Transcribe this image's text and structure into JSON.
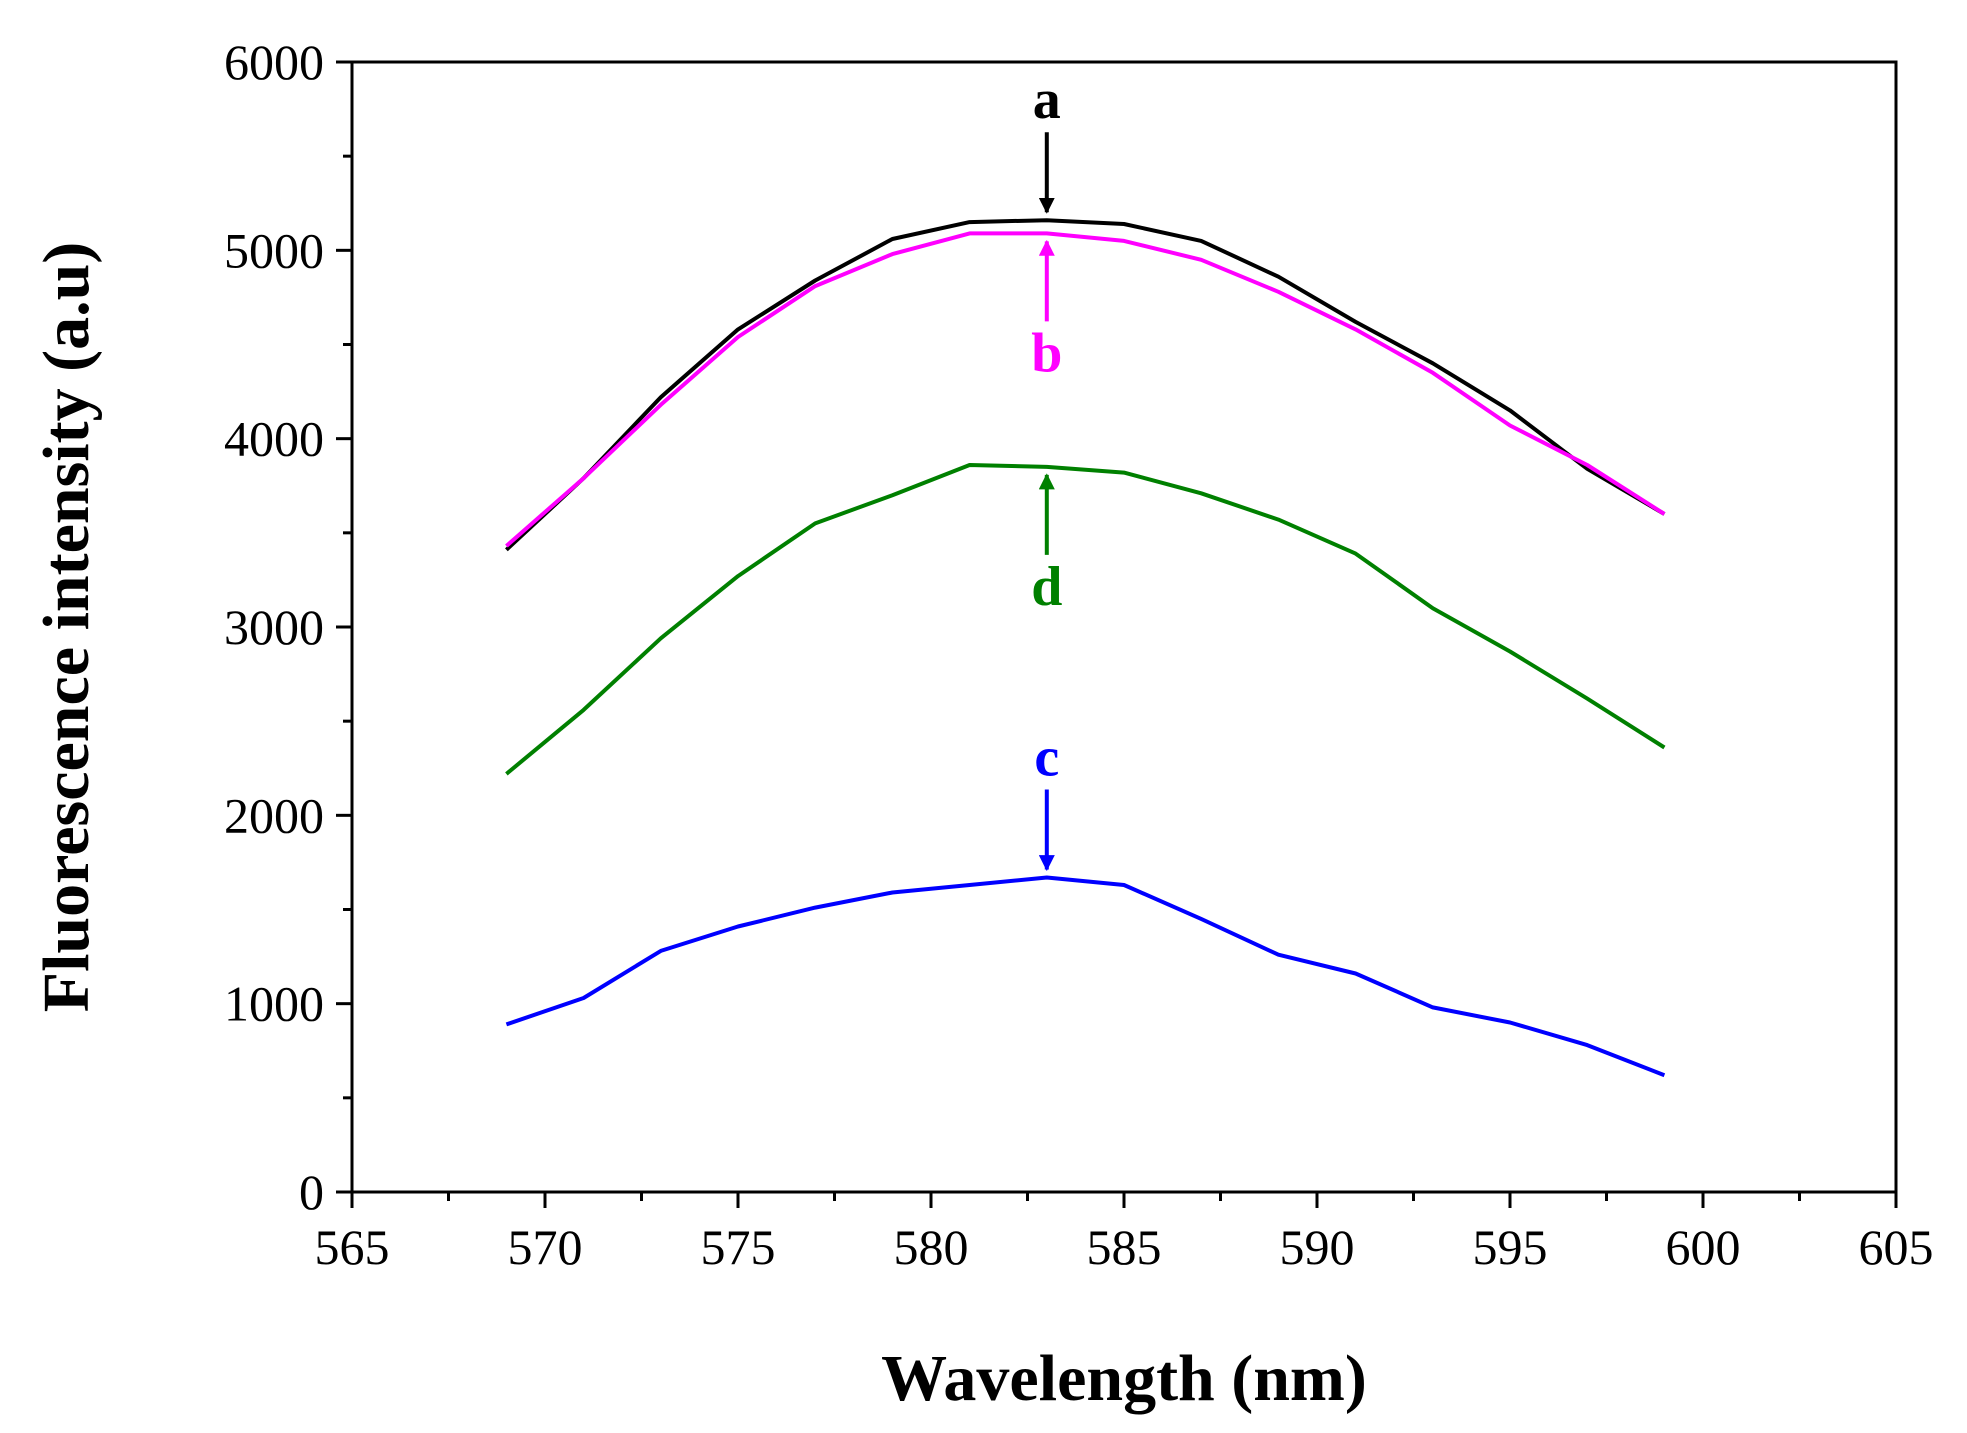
{
  "chart_data": {
    "type": "line",
    "title": "",
    "xlabel": "Wavelength (nm)",
    "ylabel": "Fluorescence intensity (a.u)",
    "xlim": [
      565,
      605
    ],
    "ylim": [
      0,
      6000
    ],
    "xticks": [
      565,
      570,
      575,
      580,
      585,
      590,
      595,
      600,
      605
    ],
    "yticks": [
      0,
      1000,
      2000,
      3000,
      4000,
      5000,
      6000
    ],
    "grid": false,
    "x": [
      569,
      571,
      573,
      575,
      577,
      579,
      581,
      583,
      585,
      587,
      589,
      591,
      593,
      595,
      597,
      599
    ],
    "series": [
      {
        "name": "a",
        "color": "#000000",
        "values": [
          3410,
          3790,
          4220,
          4580,
          4840,
          5060,
          5150,
          5160,
          5140,
          5050,
          4860,
          4620,
          4400,
          4150,
          3840,
          3600
        ],
        "annotation": {
          "label": "a",
          "x": 583,
          "arrow": "down",
          "position": "above"
        }
      },
      {
        "name": "b",
        "color": "#ff00ff",
        "values": [
          3430,
          3790,
          4180,
          4540,
          4810,
          4980,
          5090,
          5090,
          5050,
          4950,
          4780,
          4580,
          4350,
          4070,
          3860,
          3600
        ],
        "annotation": {
          "label": "b",
          "x": 583,
          "arrow": "up",
          "position": "below"
        }
      },
      {
        "name": "c",
        "color": "#0000ff",
        "values": [
          890,
          1030,
          1280,
          1410,
          1510,
          1590,
          1630,
          1670,
          1630,
          1450,
          1260,
          1160,
          980,
          900,
          780,
          620
        ],
        "annotation": {
          "label": "c",
          "x": 583,
          "arrow": "down",
          "position": "above"
        }
      },
      {
        "name": "d",
        "color": "#008000",
        "values": [
          2220,
          2560,
          2940,
          3270,
          3550,
          3700,
          3860,
          3850,
          3820,
          3710,
          3570,
          3390,
          3100,
          2870,
          2620,
          2360
        ],
        "annotation": {
          "label": "d",
          "x": 583,
          "arrow": "up",
          "position": "below"
        }
      }
    ]
  }
}
